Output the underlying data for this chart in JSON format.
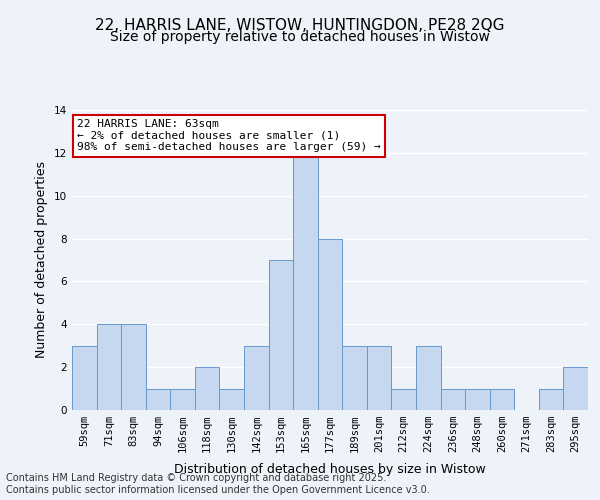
{
  "title1": "22, HARRIS LANE, WISTOW, HUNTINGDON, PE28 2QG",
  "title2": "Size of property relative to detached houses in Wistow",
  "xlabel": "Distribution of detached houses by size in Wistow",
  "ylabel": "Number of detached properties",
  "categories": [
    "59sqm",
    "71sqm",
    "83sqm",
    "94sqm",
    "106sqm",
    "118sqm",
    "130sqm",
    "142sqm",
    "153sqm",
    "165sqm",
    "177sqm",
    "189sqm",
    "201sqm",
    "212sqm",
    "224sqm",
    "236sqm",
    "248sqm",
    "260sqm",
    "271sqm",
    "283sqm",
    "295sqm"
  ],
  "values": [
    3,
    4,
    4,
    1,
    1,
    2,
    1,
    3,
    7,
    12,
    8,
    3,
    3,
    1,
    3,
    1,
    1,
    1,
    0,
    1,
    2
  ],
  "bar_color": "#c5d8f0",
  "bar_edge_color": "#6699cc",
  "highlight_index": 0,
  "annotation_box_text": "22 HARRIS LANE: 63sqm\n← 2% of detached houses are smaller (1)\n98% of semi-detached houses are larger (59) →",
  "annotation_box_color": "#ffffff",
  "annotation_box_edge_color": "#cc0000",
  "ylim": [
    0,
    14
  ],
  "yticks": [
    0,
    2,
    4,
    6,
    8,
    10,
    12,
    14
  ],
  "footer": "Contains HM Land Registry data © Crown copyright and database right 2025.\nContains public sector information licensed under the Open Government Licence v3.0.",
  "bg_color": "#eef3fa",
  "plot_bg_color": "#eef3fa",
  "grid_color": "#ffffff",
  "title_fontsize": 11,
  "subtitle_fontsize": 10,
  "tick_fontsize": 7.5,
  "ylabel_fontsize": 9,
  "xlabel_fontsize": 9,
  "footer_fontsize": 7
}
